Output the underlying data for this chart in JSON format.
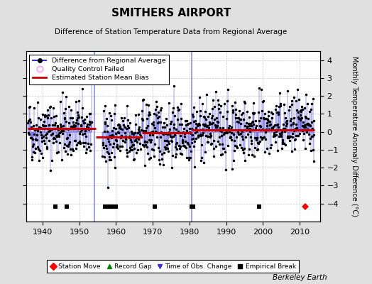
{
  "title": "SMITHERS AIRPORT",
  "subtitle": "Difference of Station Temperature Data from Regional Average",
  "ylabel": "Monthly Temperature Anomaly Difference (°C)",
  "ylim": [
    -5,
    4.5
  ],
  "yticks": [
    -4,
    -3,
    -2,
    -1,
    0,
    1,
    2,
    3,
    4
  ],
  "xlim": [
    1935.5,
    2015.5
  ],
  "xticks": [
    1940,
    1950,
    1960,
    1970,
    1980,
    1990,
    2000,
    2010
  ],
  "bg_color": "#e0e0e0",
  "plot_bg_color": "#ffffff",
  "seed": 42,
  "data_year_start": 1936,
  "data_year_end": 2014,
  "bias_segments": [
    {
      "x_start": 1936.0,
      "x_end": 1954.5,
      "bias": 0.18
    },
    {
      "x_start": 1954.5,
      "x_end": 1967.0,
      "bias": -0.28
    },
    {
      "x_start": 1967.0,
      "x_end": 1980.5,
      "bias": -0.05
    },
    {
      "x_start": 1980.5,
      "x_end": 2014.0,
      "bias": 0.12
    }
  ],
  "gap_start": 1953.5,
  "gap_end": 1956.3,
  "vertical_blue_lines": [
    1954.2,
    1980.5
  ],
  "empirical_breaks": [
    1943.5,
    1946.5,
    1957.0,
    1957.8,
    1958.5,
    1959.2,
    1960.0,
    1970.5,
    1980.5,
    1981.0,
    1999.0
  ],
  "station_moves": [
    2011.5
  ],
  "footer_text": "Berkeley Earth",
  "line_color": "#3333dd",
  "marker_color": "#000000",
  "bias_color": "#cc0000",
  "qc_color": "#ffaaff",
  "grid_color": "#bbbbbb"
}
